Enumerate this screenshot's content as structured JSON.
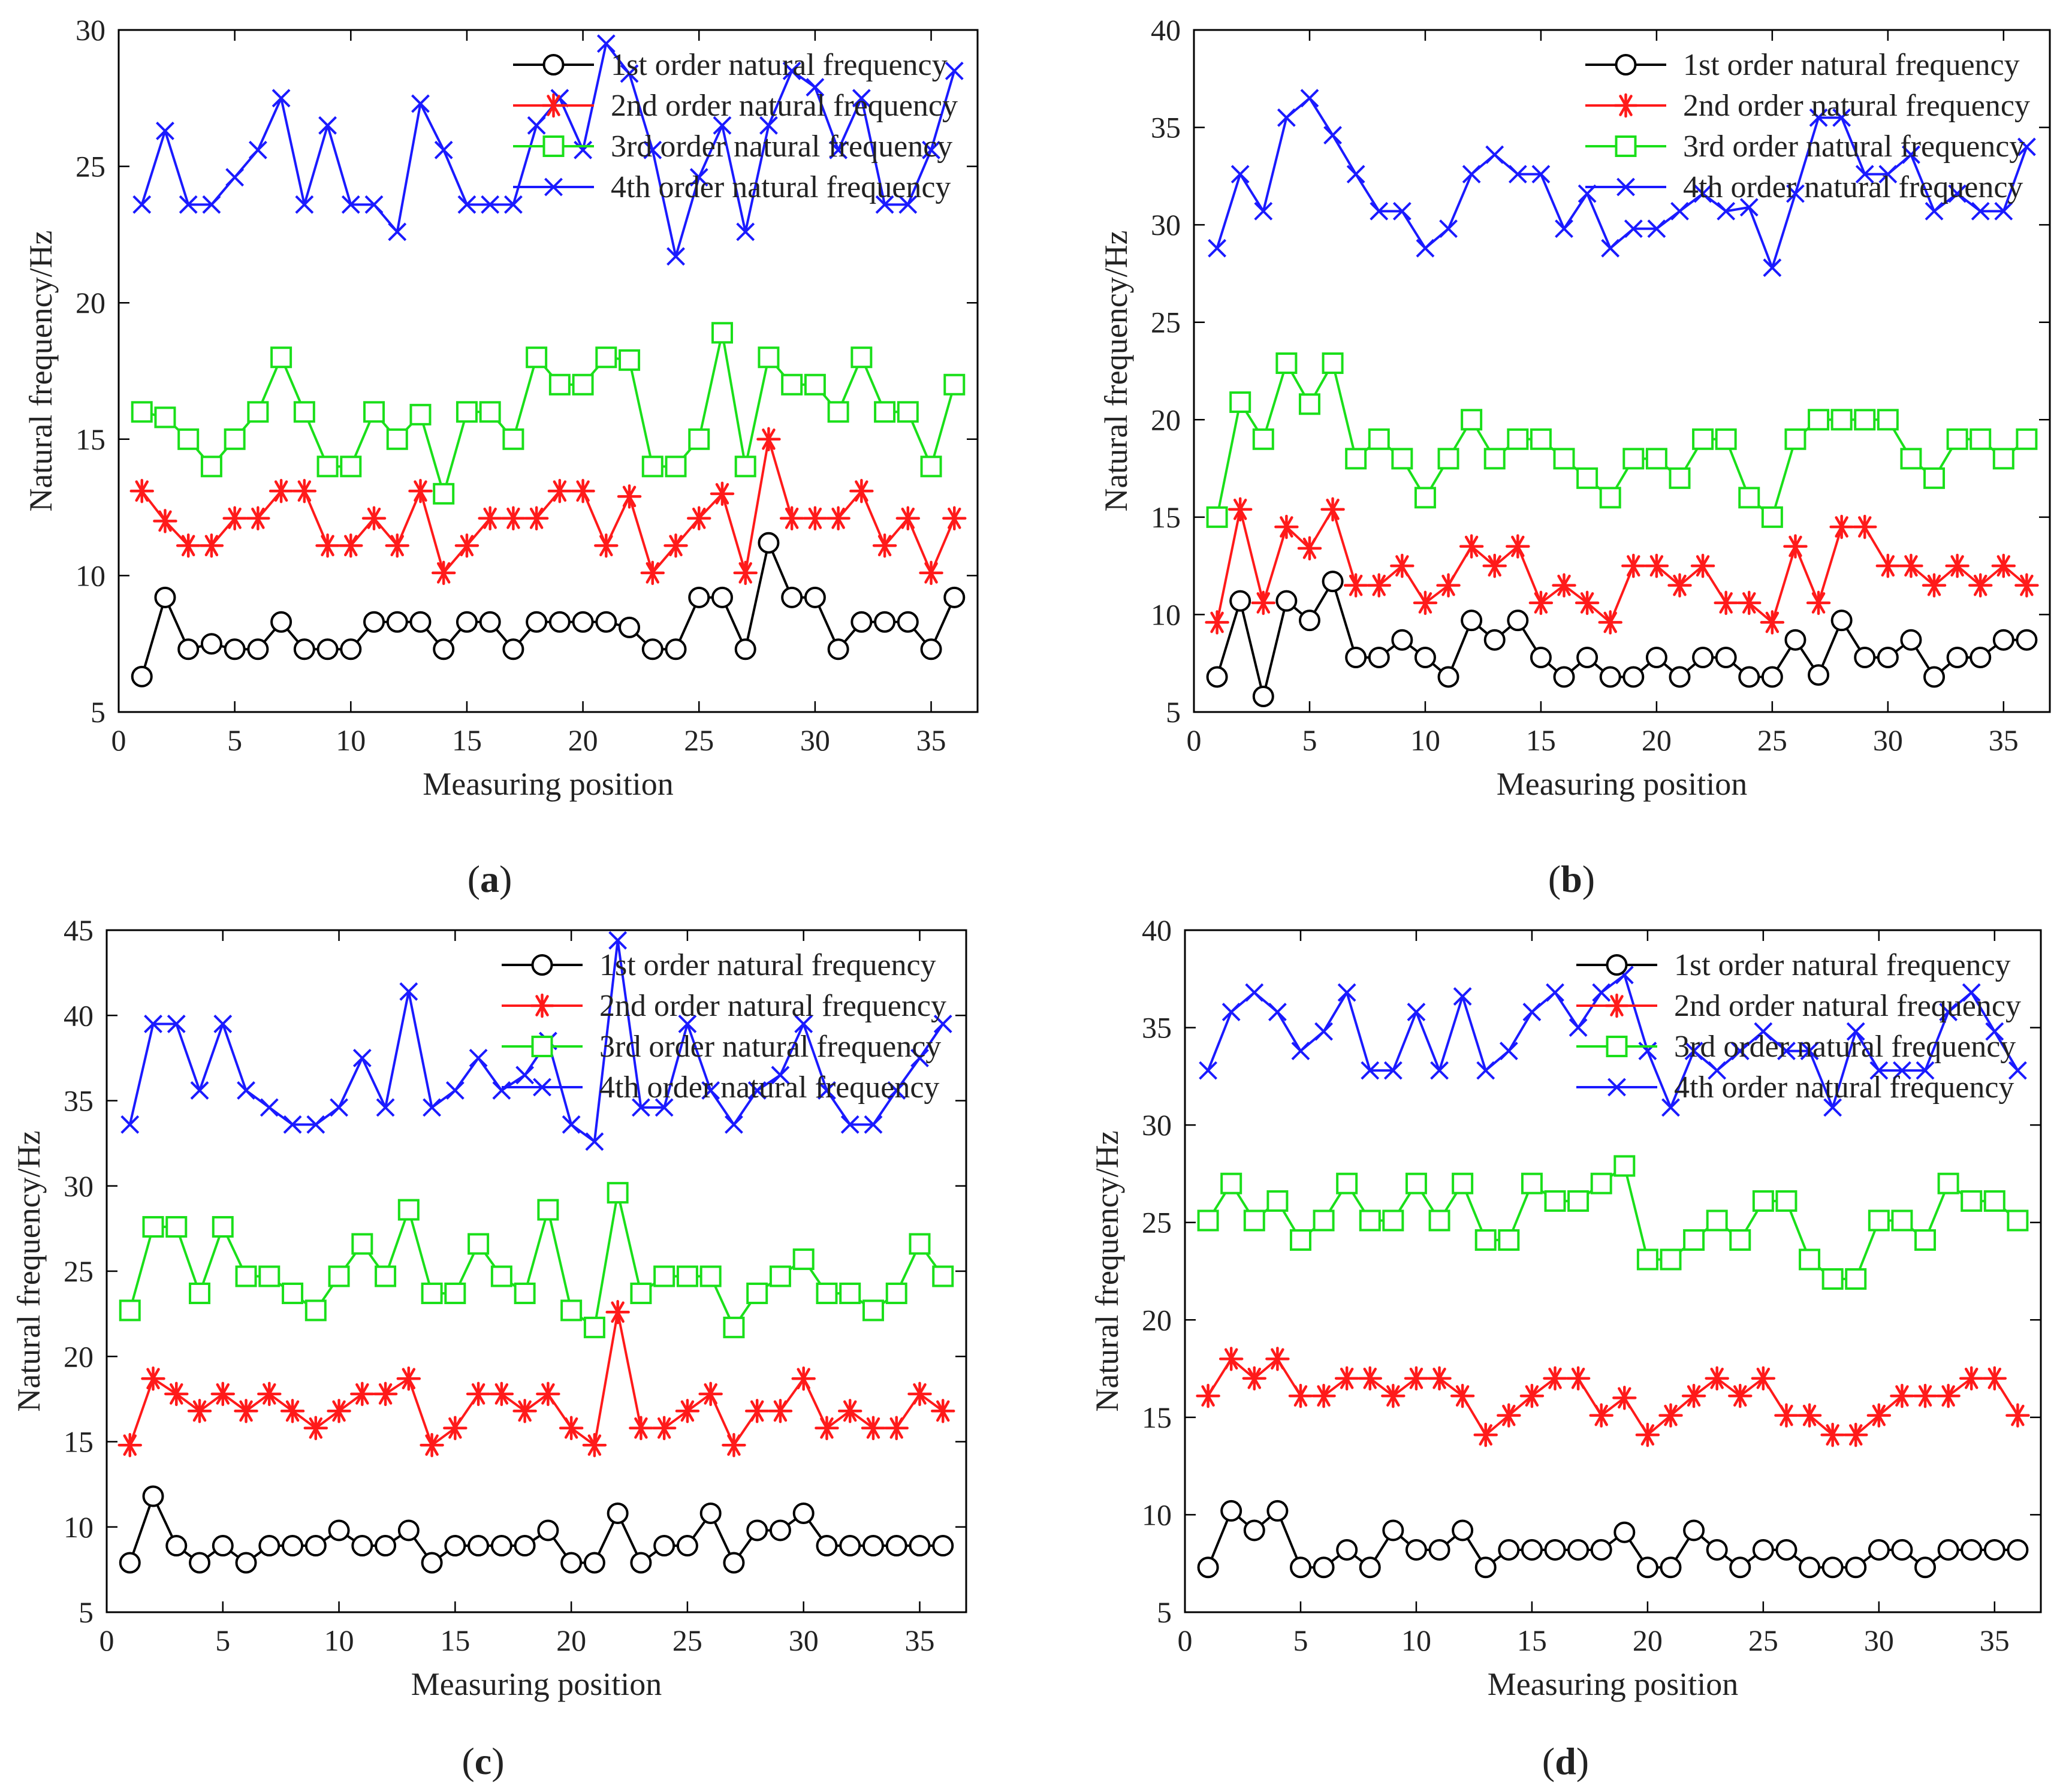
{
  "colors": {
    "series1": "#000000",
    "series2": "#ff1a1a",
    "series3": "#1adf1a",
    "series4": "#1a1aff"
  },
  "chart_data": [
    {
      "id": "a",
      "caption": "a",
      "type": "line",
      "xlabel": "Measuring  position",
      "ylabel": "Natural frequency/Hz",
      "xlim": [
        0,
        37
      ],
      "ylim": [
        5,
        30
      ],
      "xticks": [
        0,
        5,
        10,
        15,
        20,
        25,
        30,
        35
      ],
      "yticks": [
        5,
        10,
        15,
        20,
        25,
        30
      ],
      "legend_position": "top-right",
      "x": [
        1,
        2,
        3,
        4,
        5,
        6,
        7,
        8,
        9,
        10,
        11,
        12,
        13,
        14,
        15,
        16,
        17,
        18,
        19,
        20,
        21,
        22,
        23,
        24,
        25,
        26,
        27,
        28,
        29,
        30,
        31,
        32,
        33,
        34,
        35,
        36
      ],
      "series": [
        {
          "name": "1st order natural frequency",
          "marker": "circle",
          "values": [
            6.3,
            9.2,
            7.3,
            7.5,
            7.3,
            7.3,
            8.3,
            7.3,
            7.3,
            7.3,
            8.3,
            8.3,
            8.3,
            7.3,
            8.3,
            8.3,
            7.3,
            8.3,
            8.3,
            8.3,
            8.3,
            8.1,
            7.3,
            7.3,
            9.2,
            9.2,
            7.3,
            11.2,
            9.2,
            9.2,
            7.3,
            8.3,
            8.3,
            8.3,
            7.3,
            9.2
          ]
        },
        {
          "name": "2nd order natural frequency",
          "marker": "star",
          "values": [
            13.1,
            12.0,
            11.1,
            11.1,
            12.1,
            12.1,
            13.1,
            13.1,
            11.1,
            11.1,
            12.1,
            11.1,
            13.1,
            10.1,
            11.1,
            12.1,
            12.1,
            12.1,
            13.1,
            13.1,
            11.1,
            12.9,
            10.1,
            11.1,
            12.1,
            13.0,
            10.1,
            15.0,
            12.1,
            12.1,
            12.1,
            13.1,
            11.1,
            12.1,
            10.1,
            12.1
          ]
        },
        {
          "name": "3rd order natural frequency",
          "marker": "square",
          "values": [
            16.0,
            15.8,
            15.0,
            14.0,
            15.0,
            16.0,
            18.0,
            16.0,
            14.0,
            14.0,
            16.0,
            15.0,
            15.9,
            13.0,
            16.0,
            16.0,
            15.0,
            18.0,
            17.0,
            17.0,
            18.0,
            17.9,
            14.0,
            14.0,
            15.0,
            18.9,
            14.0,
            18.0,
            17.0,
            17.0,
            16.0,
            18.0,
            16.0,
            16.0,
            14.0,
            17.0
          ]
        },
        {
          "name": "4th order natural frequency",
          "marker": "x",
          "values": [
            23.6,
            26.3,
            23.6,
            23.6,
            24.6,
            25.6,
            27.5,
            23.6,
            26.5,
            23.6,
            23.6,
            22.6,
            27.3,
            25.6,
            23.6,
            23.6,
            23.6,
            26.5,
            27.5,
            25.6,
            29.5,
            28.4,
            25.6,
            21.7,
            24.6,
            26.5,
            22.6,
            26.5,
            28.5,
            27.9,
            25.6,
            27.5,
            23.6,
            23.6,
            25.6,
            28.5
          ]
        }
      ]
    },
    {
      "id": "b",
      "caption": "b",
      "type": "line",
      "xlabel": "Measuring  position",
      "ylabel": "Natural frequency/Hz",
      "xlim": [
        0,
        37
      ],
      "ylim": [
        5,
        40
      ],
      "xticks": [
        0,
        5,
        10,
        15,
        20,
        25,
        30,
        35
      ],
      "yticks": [
        5,
        10,
        15,
        20,
        25,
        30,
        35,
        40
      ],
      "legend_position": "top-right",
      "x": [
        1,
        2,
        3,
        4,
        5,
        6,
        7,
        8,
        9,
        10,
        11,
        12,
        13,
        14,
        15,
        16,
        17,
        18,
        19,
        20,
        21,
        22,
        23,
        24,
        25,
        26,
        27,
        28,
        29,
        30,
        31,
        32,
        33,
        34,
        35,
        36
      ],
      "series": [
        {
          "name": "1st order natural frequency",
          "marker": "circle",
          "values": [
            6.8,
            10.7,
            5.8,
            10.7,
            9.7,
            11.7,
            7.8,
            7.8,
            8.7,
            7.8,
            6.8,
            9.7,
            8.7,
            9.7,
            7.8,
            6.8,
            7.8,
            6.8,
            6.8,
            7.8,
            6.8,
            7.8,
            7.8,
            6.8,
            6.8,
            8.7,
            6.9,
            9.7,
            7.8,
            7.8,
            8.7,
            6.8,
            7.8,
            7.8,
            8.7,
            8.7
          ]
        },
        {
          "name": "2nd order natural frequency",
          "marker": "star",
          "values": [
            9.6,
            15.4,
            10.6,
            14.5,
            13.4,
            15.4,
            11.5,
            11.5,
            12.5,
            10.6,
            11.5,
            13.5,
            12.5,
            13.5,
            10.6,
            11.5,
            10.6,
            9.6,
            12.5,
            12.5,
            11.5,
            12.5,
            10.6,
            10.6,
            9.6,
            13.5,
            10.6,
            14.5,
            14.5,
            12.5,
            12.5,
            11.5,
            12.5,
            11.5,
            12.5,
            11.5
          ]
        },
        {
          "name": "3rd order natural frequency",
          "marker": "square",
          "values": [
            15.0,
            20.9,
            19.0,
            22.9,
            20.8,
            22.9,
            18.0,
            19.0,
            18.0,
            16.0,
            18.0,
            20.0,
            18.0,
            19.0,
            19.0,
            18.0,
            17.0,
            16.0,
            18.0,
            18.0,
            17.0,
            19.0,
            19.0,
            16.0,
            15.0,
            19.0,
            20.0,
            20.0,
            20.0,
            20.0,
            18.0,
            17.0,
            19.0,
            19.0,
            18.0,
            19.0
          ]
        },
        {
          "name": "4th order natural frequency",
          "marker": "x",
          "values": [
            28.8,
            32.6,
            30.7,
            35.5,
            36.5,
            34.6,
            32.6,
            30.7,
            30.7,
            28.8,
            29.8,
            32.6,
            33.6,
            32.6,
            32.6,
            29.8,
            31.6,
            28.8,
            29.8,
            29.8,
            30.7,
            31.6,
            30.7,
            30.9,
            27.8,
            31.6,
            35.5,
            35.5,
            32.6,
            32.6,
            33.6,
            30.7,
            31.6,
            30.7,
            30.7,
            34.0
          ]
        }
      ]
    },
    {
      "id": "c",
      "caption": "c",
      "type": "line",
      "xlabel": "Measuring  position",
      "ylabel": "Natural frequency/Hz",
      "xlim": [
        0,
        37
      ],
      "ylim": [
        5,
        45
      ],
      "xticks": [
        0,
        5,
        10,
        15,
        20,
        25,
        30,
        35
      ],
      "yticks": [
        5,
        10,
        15,
        20,
        25,
        30,
        35,
        40,
        45
      ],
      "legend_position": "top-right",
      "x": [
        1,
        2,
        3,
        4,
        5,
        6,
        7,
        8,
        9,
        10,
        11,
        12,
        13,
        14,
        15,
        16,
        17,
        18,
        19,
        20,
        21,
        22,
        23,
        24,
        25,
        26,
        27,
        28,
        29,
        30,
        31,
        32,
        33,
        34,
        35,
        36
      ],
      "series": [
        {
          "name": "1st order natural frequency",
          "marker": "circle",
          "values": [
            7.9,
            11.8,
            8.9,
            7.9,
            8.9,
            7.9,
            8.9,
            8.9,
            8.9,
            9.8,
            8.9,
            8.9,
            9.8,
            7.9,
            8.9,
            8.9,
            8.9,
            8.9,
            9.8,
            7.9,
            7.9,
            10.8,
            7.9,
            8.9,
            8.9,
            10.8,
            7.9,
            9.8,
            9.8,
            10.8,
            8.9,
            8.9,
            8.9,
            8.9,
            8.9,
            8.9
          ]
        },
        {
          "name": "2nd order natural frequency",
          "marker": "star",
          "values": [
            14.8,
            18.7,
            17.8,
            16.8,
            17.8,
            16.8,
            17.8,
            16.8,
            15.8,
            16.8,
            17.8,
            17.8,
            18.7,
            14.8,
            15.8,
            17.8,
            17.8,
            16.8,
            17.8,
            15.8,
            14.8,
            22.6,
            15.8,
            15.8,
            16.8,
            17.8,
            14.8,
            16.8,
            16.8,
            18.7,
            15.8,
            16.8,
            15.8,
            15.8,
            17.8,
            16.8
          ]
        },
        {
          "name": "3rd order natural frequency",
          "marker": "square",
          "values": [
            22.7,
            27.6,
            27.6,
            23.7,
            27.6,
            24.7,
            24.7,
            23.7,
            22.7,
            24.7,
            26.6,
            24.7,
            28.6,
            23.7,
            23.7,
            26.6,
            24.7,
            23.7,
            28.6,
            22.7,
            21.7,
            29.6,
            23.7,
            24.7,
            24.7,
            24.7,
            21.7,
            23.7,
            24.7,
            25.7,
            23.7,
            23.7,
            22.7,
            23.7,
            26.6,
            24.7
          ]
        },
        {
          "name": "4th order natural frequency",
          "marker": "x",
          "values": [
            33.6,
            39.5,
            39.5,
            35.6,
            39.5,
            35.6,
            34.6,
            33.6,
            33.6,
            34.6,
            37.5,
            34.6,
            41.4,
            34.6,
            35.6,
            37.5,
            35.6,
            36.5,
            38.5,
            33.6,
            32.6,
            44.4,
            34.6,
            34.6,
            39.5,
            35.6,
            33.6,
            35.6,
            36.5,
            39.5,
            35.6,
            33.6,
            33.6,
            35.6,
            37.5,
            39.5
          ]
        }
      ]
    },
    {
      "id": "d",
      "caption": "d",
      "type": "line",
      "xlabel": "Measuring  position",
      "ylabel": "Natural frequency/Hz",
      "xlim": [
        0,
        37
      ],
      "ylim": [
        5,
        40
      ],
      "xticks": [
        0,
        5,
        10,
        15,
        20,
        25,
        30,
        35
      ],
      "yticks": [
        5,
        10,
        15,
        20,
        25,
        30,
        35,
        40
      ],
      "legend_position": "top-right",
      "x": [
        1,
        2,
        3,
        4,
        5,
        6,
        7,
        8,
        9,
        10,
        11,
        12,
        13,
        14,
        15,
        16,
        17,
        18,
        19,
        20,
        21,
        22,
        23,
        24,
        25,
        26,
        27,
        28,
        29,
        30,
        31,
        32,
        33,
        34,
        35,
        36
      ],
      "series": [
        {
          "name": "1st order natural frequency",
          "marker": "circle",
          "values": [
            7.3,
            10.2,
            9.2,
            10.2,
            7.3,
            7.3,
            8.2,
            7.3,
            9.2,
            8.2,
            8.2,
            9.2,
            7.3,
            8.2,
            8.2,
            8.2,
            8.2,
            8.2,
            9.1,
            7.3,
            7.3,
            9.2,
            8.2,
            7.3,
            8.2,
            8.2,
            7.3,
            7.3,
            7.3,
            8.2,
            8.2,
            7.3,
            8.2,
            8.2,
            8.2,
            8.2
          ]
        },
        {
          "name": "2nd order natural frequency",
          "marker": "star",
          "values": [
            16.1,
            18.0,
            17.0,
            18.0,
            16.1,
            16.1,
            17.0,
            17.0,
            16.1,
            17.0,
            17.0,
            16.1,
            14.1,
            15.1,
            16.1,
            17.0,
            17.0,
            15.1,
            16.0,
            14.1,
            15.1,
            16.1,
            17.0,
            16.1,
            17.0,
            15.1,
            15.1,
            14.1,
            14.1,
            15.1,
            16.1,
            16.1,
            16.1,
            17.0,
            17.0,
            15.1
          ]
        },
        {
          "name": "3rd order natural frequency",
          "marker": "square",
          "values": [
            25.1,
            27.0,
            25.1,
            26.1,
            24.1,
            25.1,
            27.0,
            25.1,
            25.1,
            27.0,
            25.1,
            27.0,
            24.1,
            24.1,
            27.0,
            26.1,
            26.1,
            27.0,
            27.9,
            23.1,
            23.1,
            24.1,
            25.1,
            24.1,
            26.1,
            26.1,
            23.1,
            22.1,
            22.1,
            25.1,
            25.1,
            24.1,
            27.0,
            26.1,
            26.1,
            25.1
          ]
        },
        {
          "name": "4th order natural frequency",
          "marker": "x",
          "values": [
            32.8,
            35.8,
            36.8,
            35.8,
            33.8,
            34.8,
            36.8,
            32.8,
            32.8,
            35.8,
            32.8,
            36.6,
            32.8,
            33.8,
            35.8,
            36.8,
            35.0,
            36.8,
            37.7,
            33.8,
            30.9,
            33.8,
            32.8,
            33.8,
            34.8,
            33.8,
            33.8,
            30.9,
            34.8,
            32.8,
            32.8,
            32.8,
            35.8,
            36.8,
            34.8,
            32.8
          ]
        }
      ]
    }
  ]
}
